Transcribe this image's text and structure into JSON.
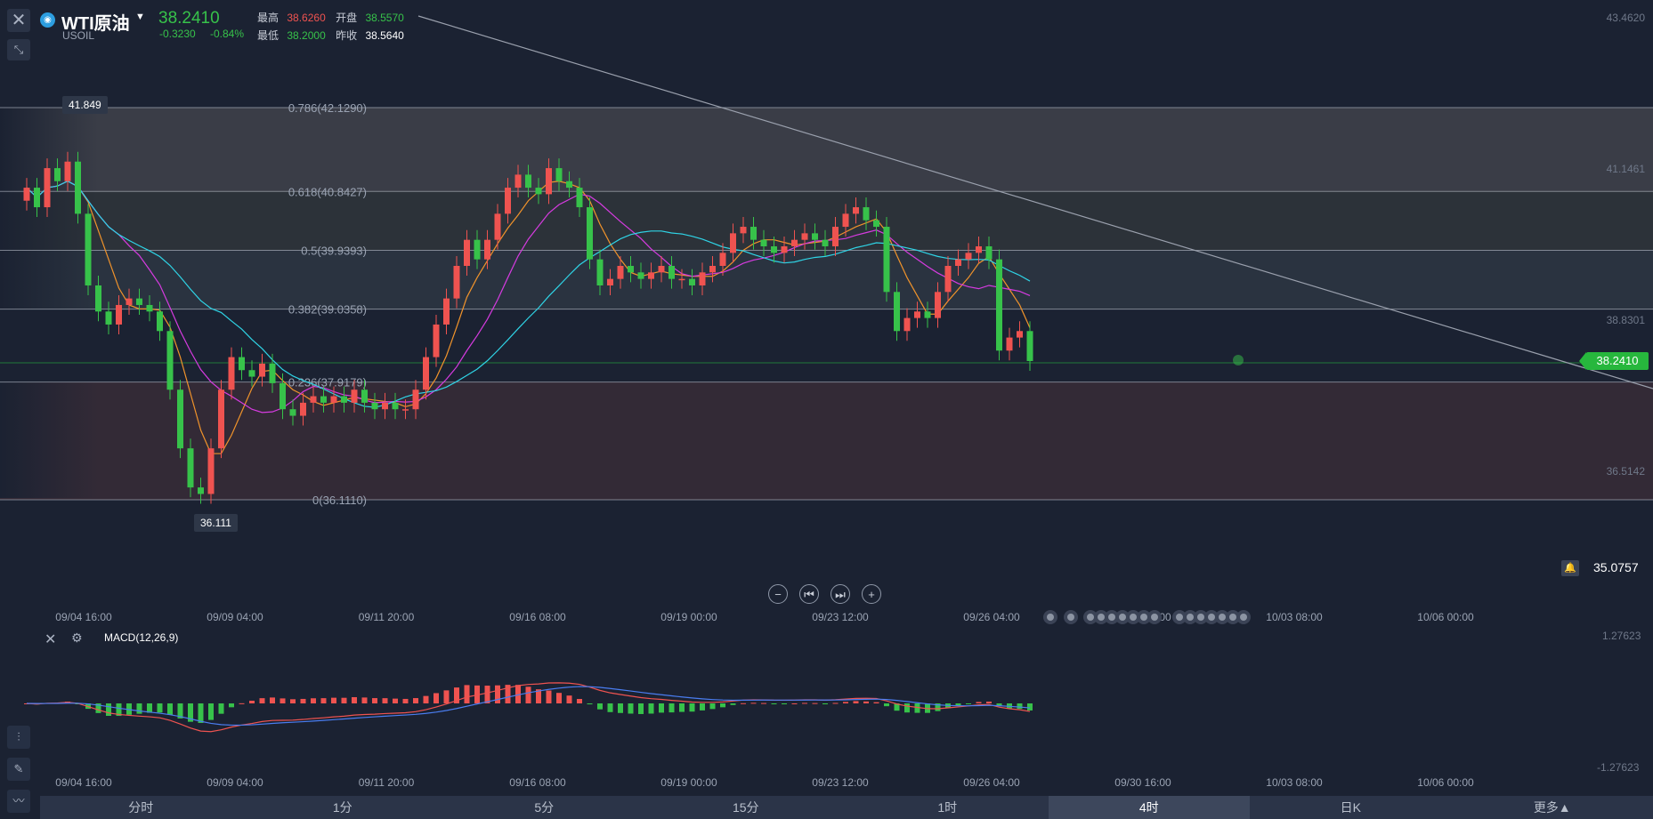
{
  "header": {
    "symbol_name": "WTI原油",
    "symbol_code": "USOIL",
    "price": "38.2410",
    "change": "-0.3230",
    "change_pct": "-0.84%",
    "high_label": "最高",
    "high": "38.6260",
    "open_label": "开盘",
    "open": "38.5570",
    "low_label": "最低",
    "low": "38.2000",
    "prev_close_label": "昨收",
    "prev_close": "38.5640"
  },
  "price_axis": [
    "43.4620",
    "41.1461",
    "38.8301",
    "36.5142"
  ],
  "current_price_tag": "38.2410",
  "alert_price": "35.0757",
  "fib_levels": [
    {
      "label": "0.786(42.1290)"
    },
    {
      "label": "0.618(40.8427)"
    },
    {
      "label": "0.5(39.9393)"
    },
    {
      "label": "0.382(39.0358)"
    },
    {
      "label": "0.236(37.9179)"
    },
    {
      "label": "0(36.1110)"
    }
  ],
  "high_marker": "41.849",
  "low_marker": "36.111",
  "time_axis": [
    "09/04 16:00",
    "09/09 04:00",
    "09/11 20:00",
    "09/16 08:00",
    "09/19 00:00",
    "09/23 12:00",
    "09/26 04:00",
    "10/03 08:00",
    "10/06 00:00"
  ],
  "time_axis_overlap": "09/30 16:00",
  "time_axis_bottom": [
    "09/04 16:00",
    "09/09 04:00",
    "09/11 20:00",
    "09/16 08:00",
    "09/19 00:00",
    "09/23 12:00",
    "09/26 04:00",
    "09/30 16:00",
    "10/03 08:00",
    "10/06 00:00"
  ],
  "macd": {
    "title": "MACD(12,26,9)",
    "axis_top": "1.27623",
    "axis_bottom": "-1.27623"
  },
  "zoom_controls": [
    {
      "name": "zoom-out-button",
      "glyph": "−"
    },
    {
      "name": "scroll-start-button",
      "glyph": "⏮"
    },
    {
      "name": "scroll-end-button",
      "glyph": "⏭"
    },
    {
      "name": "zoom-in-button",
      "glyph": "+"
    }
  ],
  "intervals": [
    {
      "label": "分时"
    },
    {
      "label": "1分"
    },
    {
      "label": "5分"
    },
    {
      "label": "15分"
    },
    {
      "label": "1时"
    },
    {
      "label": "4时"
    },
    {
      "label": "日K"
    },
    {
      "label": "更多▲"
    }
  ],
  "active_interval": "4时",
  "colors": {
    "up": "#ef5350",
    "down": "#37c24a",
    "ma_fast": "#f0932b",
    "ma_mid": "#d63be0",
    "ma_slow": "#2fd4e6",
    "macd_dif": "#ef5350",
    "macd_dea": "#4a7df0"
  },
  "icons": [
    "close-icon",
    "shrink-icon",
    "caret-down-icon",
    "bell-icon",
    "gear-icon",
    "draw-icon",
    "indicator-icon",
    "line-icon"
  ]
}
